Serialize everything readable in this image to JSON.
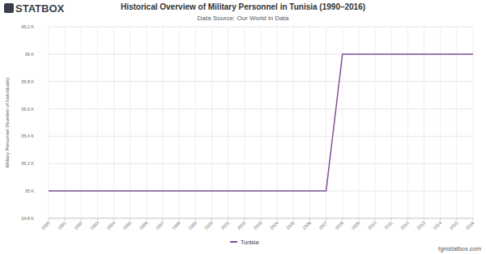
{
  "chart_data": {
    "type": "line",
    "title": "Historical Overview of Military Personnel in Tunisia (1990–2016)",
    "subtitle": "Data Source: Our World in Data",
    "y_label": "Military Personnel (Number of Individuals)",
    "x": [
      1990,
      1991,
      1992,
      1993,
      1994,
      1995,
      1996,
      1997,
      1998,
      1999,
      2000,
      2001,
      2002,
      2003,
      2004,
      2005,
      2006,
      2007,
      2008,
      2009,
      2010,
      2011,
      2012,
      2013,
      2014,
      2015,
      2016
    ],
    "series": [
      {
        "name": "Tunisia",
        "color": "#7e4f99",
        "values": [
          35000,
          35000,
          35000,
          35000,
          35000,
          35000,
          35000,
          35000,
          35000,
          35000,
          35000,
          35000,
          35000,
          35000,
          35000,
          35000,
          35000,
          35000,
          36000,
          36000,
          36000,
          36000,
          36000,
          36000,
          36000,
          36000,
          36000
        ]
      }
    ],
    "xlim": [
      1990,
      2016
    ],
    "xticks": [
      1990,
      1991,
      1992,
      1993,
      1994,
      1995,
      1996,
      1997,
      1998,
      1999,
      2000,
      2001,
      2002,
      2003,
      2004,
      2005,
      2006,
      2007,
      2008,
      2009,
      2010,
      2011,
      2012,
      2013,
      2014,
      2015,
      2016
    ],
    "ylim": [
      34800,
      36200
    ],
    "yticks": [
      {
        "value": 34800,
        "label": "34.8 K"
      },
      {
        "value": 35000,
        "label": "35 K"
      },
      {
        "value": 35200,
        "label": "35.2 K"
      },
      {
        "value": 35400,
        "label": "35.4 K"
      },
      {
        "value": 35600,
        "label": "35.6 K"
      },
      {
        "value": 35800,
        "label": "35.8 K"
      },
      {
        "value": 36000,
        "label": "36 K"
      },
      {
        "value": 36200,
        "label": "36.2 K"
      }
    ],
    "grid": true,
    "legend": "bottom"
  },
  "branding": {
    "logo": "STATBOX",
    "site": "tgmstatbox.com"
  }
}
